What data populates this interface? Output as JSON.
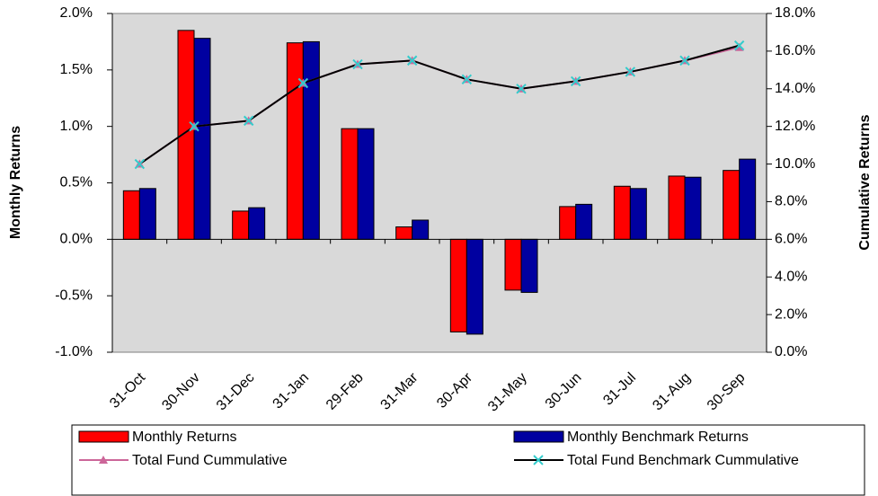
{
  "chart_data": {
    "type": "bar",
    "categories": [
      "31-Oct",
      "30-Nov",
      "31-Dec",
      "31-Jan",
      "29-Feb",
      "31-Mar",
      "30-Apr",
      "31-May",
      "30-Jun",
      "31-Jul",
      "31-Aug",
      "30-Sep"
    ],
    "y_label": "Monthly Returns",
    "y2_label": "Cumulative Returns",
    "ylim": [
      -1.0,
      2.0
    ],
    "yticks": [
      {
        "value": -1.0,
        "label": "-1.0%"
      },
      {
        "value": -0.5,
        "label": "-0.5%"
      },
      {
        "value": 0.0,
        "label": "0.0%"
      },
      {
        "value": 0.5,
        "label": "0.5%"
      },
      {
        "value": 1.0,
        "label": "1.0%"
      },
      {
        "value": 1.5,
        "label": "1.5%"
      },
      {
        "value": 2.0,
        "label": "2.0%"
      }
    ],
    "y2lim": [
      0.0,
      18.0
    ],
    "y2ticks": [
      {
        "value": 0.0,
        "label": "0.0%"
      },
      {
        "value": 2.0,
        "label": "2.0%"
      },
      {
        "value": 4.0,
        "label": "4.0%"
      },
      {
        "value": 6.0,
        "label": "6.0%"
      },
      {
        "value": 8.0,
        "label": "8.0%"
      },
      {
        "value": 10.0,
        "label": "10.0%"
      },
      {
        "value": 12.0,
        "label": "12.0%"
      },
      {
        "value": 14.0,
        "label": "14.0%"
      },
      {
        "value": 16.0,
        "label": "16.0%"
      },
      {
        "value": 18.0,
        "label": "18.0%"
      }
    ],
    "grid": false,
    "series": [
      {
        "name": "Monthly Returns",
        "type": "bar",
        "color": "#ff0000",
        "values": [
          0.43,
          1.85,
          0.25,
          1.74,
          0.98,
          0.11,
          -0.82,
          -0.45,
          0.29,
          0.47,
          0.56,
          0.61
        ]
      },
      {
        "name": "Monthly Benchmark Returns",
        "type": "bar",
        "color": "#0000a0",
        "values": [
          0.45,
          1.78,
          0.28,
          1.75,
          0.98,
          0.17,
          -0.84,
          -0.47,
          0.31,
          0.45,
          0.55,
          0.71
        ]
      },
      {
        "name": "Total Fund Cummulative",
        "type": "line",
        "axis": "y2",
        "color": "#cc6699",
        "marker": "triangle",
        "marker_color": "#cc6699",
        "values": [
          10.0,
          12.0,
          12.3,
          14.3,
          15.3,
          15.5,
          14.5,
          14.0,
          14.4,
          14.9,
          15.5,
          16.2
        ]
      },
      {
        "name": "Total Fund Benchmark Cummulative",
        "type": "line",
        "axis": "y2",
        "color": "#000000",
        "marker": "x",
        "marker_color": "#33cccc",
        "values": [
          10.0,
          12.0,
          12.3,
          14.3,
          15.3,
          15.5,
          14.5,
          14.0,
          14.4,
          14.9,
          15.5,
          16.3
        ]
      }
    ]
  }
}
